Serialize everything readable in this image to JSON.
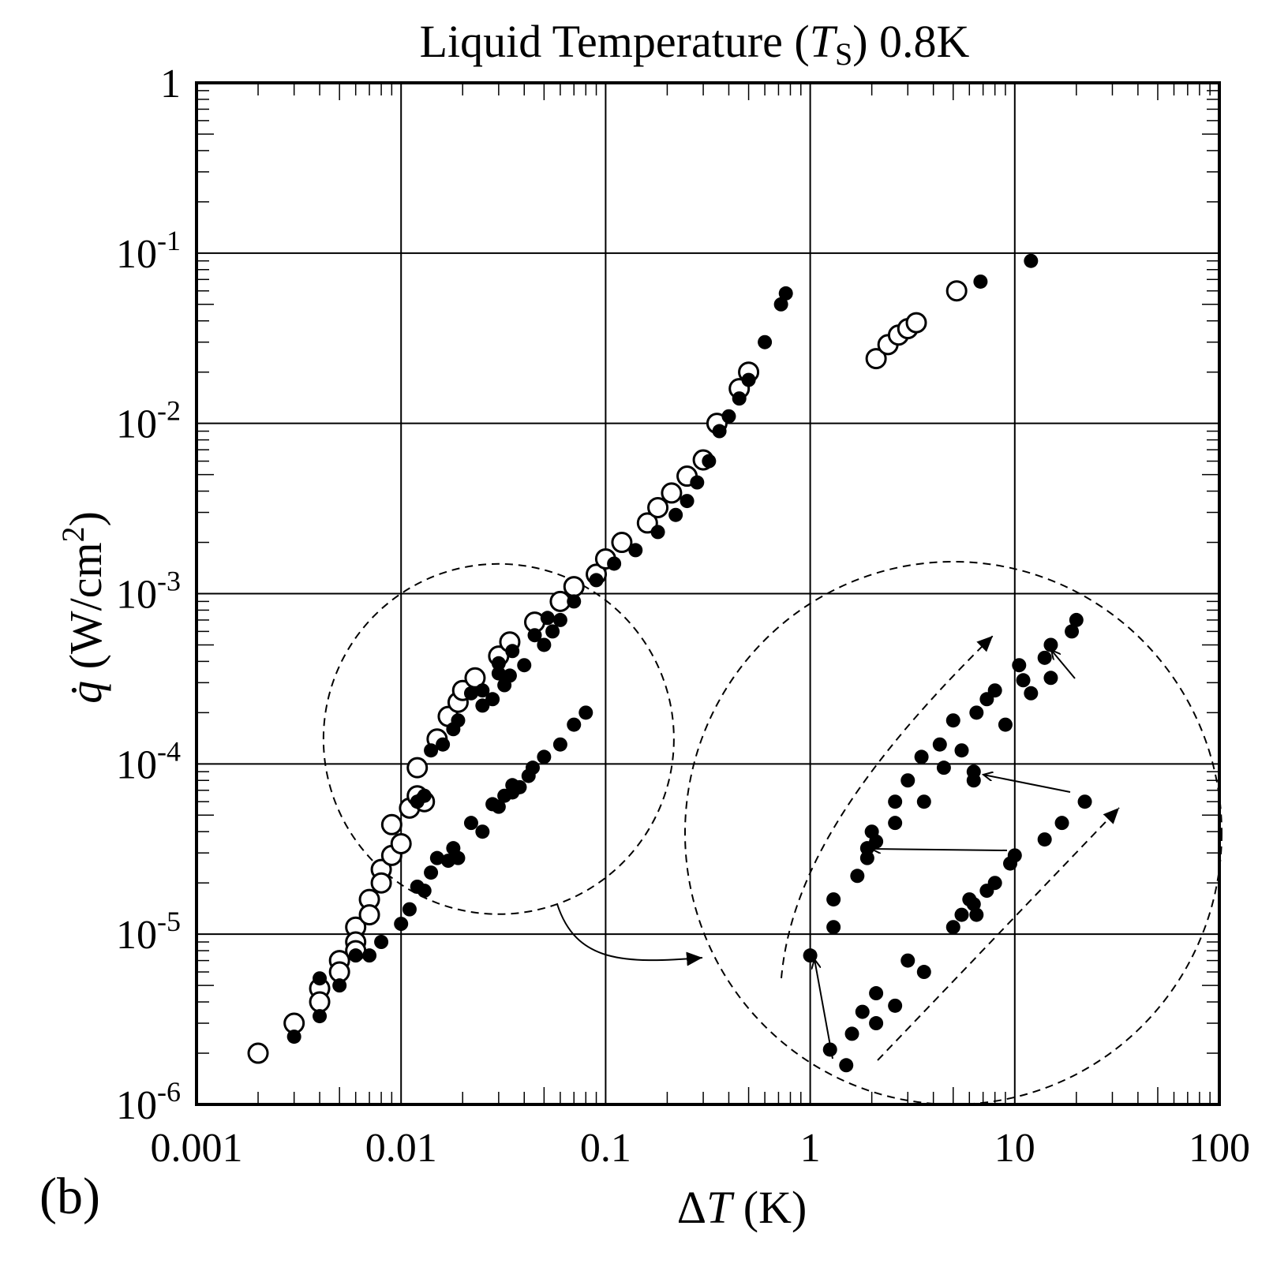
{
  "chart_data": {
    "type": "scatter",
    "title": {
      "prefix": "Liquid Temperature (",
      "symbol": "T",
      "subscript": "S",
      "suffix": ") 0.8K"
    },
    "panel_label": "(b)",
    "x_axis": {
      "scale": "log",
      "range": [
        0.001,
        100
      ],
      "label": {
        "prefix": "Δ",
        "symbol": "T",
        "unit": " (K)"
      },
      "ticks": [
        {
          "value": 0.001,
          "label": "0.001"
        },
        {
          "value": 0.01,
          "label": "0.01"
        },
        {
          "value": 0.1,
          "label": "0.1"
        },
        {
          "value": 1,
          "label": "1"
        },
        {
          "value": 10,
          "label": "10"
        },
        {
          "value": 100,
          "label": "100"
        }
      ]
    },
    "y_axis": {
      "scale": "log",
      "range": [
        1e-06,
        1
      ],
      "label": {
        "symbol": "q̇",
        "unit": " (W/cm",
        "superscript": "2",
        "close": ")"
      },
      "ticks": [
        {
          "value": 1,
          "base": "1",
          "exponent": ""
        },
        {
          "value": 0.1,
          "base": "10",
          "exponent": "-1"
        },
        {
          "value": 0.01,
          "base": "10",
          "exponent": "-2"
        },
        {
          "value": 0.001,
          "base": "10",
          "exponent": "-3"
        },
        {
          "value": 0.0001,
          "base": "10",
          "exponent": "-4"
        },
        {
          "value": 1e-05,
          "base": "10",
          "exponent": "-5"
        },
        {
          "value": 1e-06,
          "base": "10",
          "exponent": "-6"
        }
      ]
    },
    "grid": true,
    "series": [
      {
        "marker": "open-circle",
        "points": [
          [
            0.002,
            2e-06
          ],
          [
            0.003,
            3e-06
          ],
          [
            0.004,
            4.8e-06
          ],
          [
            0.004,
            4e-06
          ],
          [
            0.005,
            7e-06
          ],
          [
            0.005,
            6e-06
          ],
          [
            0.006,
            1.1e-05
          ],
          [
            0.006,
            9e-06
          ],
          [
            0.006,
            8e-06
          ],
          [
            0.007,
            1.6e-05
          ],
          [
            0.007,
            1.3e-05
          ],
          [
            0.008,
            2.4e-05
          ],
          [
            0.008,
            2e-05
          ],
          [
            0.009,
            4.4e-05
          ],
          [
            0.009,
            2.9e-05
          ],
          [
            0.01,
            3.4e-05
          ],
          [
            0.011,
            5.5e-05
          ],
          [
            0.012,
            9.5e-05
          ],
          [
            0.012,
            6.5e-05
          ],
          [
            0.013,
            6e-05
          ],
          [
            0.015,
            0.00014
          ],
          [
            0.017,
            0.00019
          ],
          [
            0.019,
            0.00023
          ],
          [
            0.02,
            0.00027
          ],
          [
            0.023,
            0.00032
          ],
          [
            0.03,
            0.00043
          ],
          [
            0.034,
            0.00052
          ],
          [
            0.045,
            0.00068
          ],
          [
            0.06,
            0.0009
          ],
          [
            0.07,
            0.0011
          ],
          [
            0.09,
            0.0013
          ],
          [
            0.1,
            0.0016
          ],
          [
            0.12,
            0.002
          ],
          [
            0.16,
            0.0026
          ],
          [
            0.18,
            0.0032
          ],
          [
            0.21,
            0.0039
          ],
          [
            0.25,
            0.0049
          ],
          [
            0.3,
            0.0061
          ],
          [
            0.35,
            0.01
          ],
          [
            0.45,
            0.016
          ],
          [
            0.5,
            0.02
          ],
          [
            2.1,
            0.024
          ],
          [
            2.4,
            0.029
          ],
          [
            2.7,
            0.033
          ],
          [
            3.0,
            0.036
          ],
          [
            3.3,
            0.039
          ],
          [
            5.2,
            0.06
          ]
        ]
      },
      {
        "marker": "filled-circle",
        "points": [
          [
            0.003,
            2.5e-06
          ],
          [
            0.004,
            3.3e-06
          ],
          [
            0.004,
            5.5e-06
          ],
          [
            0.005,
            5e-06
          ],
          [
            0.006,
            7.5e-06
          ],
          [
            0.007,
            7.5e-06
          ],
          [
            0.008,
            9e-06
          ],
          [
            0.01,
            1.15e-05
          ],
          [
            0.011,
            1.4e-05
          ],
          [
            0.012,
            1.9e-05
          ],
          [
            0.013,
            1.8e-05
          ],
          [
            0.014,
            2.3e-05
          ],
          [
            0.015,
            2.8e-05
          ],
          [
            0.017,
            2.7e-05
          ],
          [
            0.018,
            3.2e-05
          ],
          [
            0.019,
            2.8e-05
          ],
          [
            0.022,
            4.5e-05
          ],
          [
            0.025,
            4e-05
          ],
          [
            0.028,
            5.8e-05
          ],
          [
            0.03,
            5.6e-05
          ],
          [
            0.032,
            6.5e-05
          ],
          [
            0.035,
            7.5e-05
          ],
          [
            0.035,
            6.8e-05
          ],
          [
            0.038,
            7.3e-05
          ],
          [
            0.042,
            8.5e-05
          ],
          [
            0.044,
            9.5e-05
          ],
          [
            0.05,
            0.00011
          ],
          [
            0.06,
            0.00013
          ],
          [
            0.07,
            0.00017
          ],
          [
            0.08,
            0.0002
          ],
          [
            0.012,
            6e-05
          ],
          [
            0.013,
            6.5e-05
          ],
          [
            0.014,
            0.00012
          ],
          [
            0.016,
            0.00013
          ],
          [
            0.018,
            0.00016
          ],
          [
            0.019,
            0.00018
          ],
          [
            0.022,
            0.00026
          ],
          [
            0.025,
            0.00022
          ],
          [
            0.03,
            0.00034
          ],
          [
            0.034,
            0.00033
          ],
          [
            0.04,
            0.00038
          ],
          [
            0.05,
            0.0005
          ],
          [
            0.06,
            0.0007
          ],
          [
            0.07,
            0.0009
          ],
          [
            0.09,
            0.0012
          ],
          [
            0.11,
            0.0015
          ],
          [
            0.14,
            0.0018
          ],
          [
            0.18,
            0.0023
          ],
          [
            0.22,
            0.0029
          ],
          [
            0.25,
            0.0035
          ],
          [
            0.28,
            0.0045
          ],
          [
            0.32,
            0.006
          ],
          [
            0.36,
            0.009
          ],
          [
            0.4,
            0.011
          ],
          [
            0.45,
            0.014
          ],
          [
            0.5,
            0.018
          ],
          [
            0.6,
            0.03
          ],
          [
            0.72,
            0.05
          ],
          [
            0.76,
            0.058
          ],
          [
            6.8,
            0.068
          ],
          [
            12,
            0.09
          ],
          [
            0.03,
            0.00039
          ],
          [
            0.035,
            0.00046
          ],
          [
            0.025,
            0.00027
          ],
          [
            0.028,
            0.00024
          ],
          [
            0.032,
            0.00029
          ],
          [
            0.045,
            0.00057
          ],
          [
            0.052,
            0.00072
          ],
          [
            0.055,
            0.0006
          ]
        ]
      }
    ],
    "annotations": {
      "zoom_circle_center": [
        0.03,
        0.00014
      ],
      "inset_points": [
        [
          1.0,
          7.5e-06
        ],
        [
          1.25,
          2.1e-06
        ],
        [
          1.5,
          1.7e-06
        ],
        [
          1.3,
          1.1e-05
        ],
        [
          1.3,
          1.6e-05
        ],
        [
          1.6,
          2.6e-06
        ],
        [
          1.8,
          3.5e-06
        ],
        [
          2.1,
          4.5e-06
        ],
        [
          2.1,
          3e-06
        ],
        [
          2.6,
          3.8e-06
        ],
        [
          1.7,
          2.2e-05
        ],
        [
          1.9,
          2.8e-05
        ],
        [
          2.1,
          3.5e-05
        ],
        [
          1.9,
          3.2e-05
        ],
        [
          2.0,
          4e-05
        ],
        [
          2.6,
          4.5e-05
        ],
        [
          2.6,
          6e-05
        ],
        [
          3.0,
          8e-05
        ],
        [
          3.0,
          7e-06
        ],
        [
          3.6,
          6e-06
        ],
        [
          3.6,
          6e-05
        ],
        [
          3.5,
          0.00011
        ],
        [
          4.3,
          0.00013
        ],
        [
          4.5,
          9.5e-05
        ],
        [
          5.0,
          0.00018
        ],
        [
          5.5,
          0.00012
        ],
        [
          6.3,
          9e-05
        ],
        [
          6.3,
          8e-05
        ],
        [
          5.0,
          1.1e-05
        ],
        [
          5.5,
          1.3e-05
        ],
        [
          6.0,
          1.6e-05
        ],
        [
          6.5,
          1.3e-05
        ],
        [
          6.3,
          1.5e-05
        ],
        [
          7.3,
          1.8e-05
        ],
        [
          8.0,
          2e-05
        ],
        [
          9.5,
          2.6e-05
        ],
        [
          10,
          2.9e-05
        ],
        [
          14,
          3.6e-05
        ],
        [
          17,
          4.5e-05
        ],
        [
          22,
          6e-05
        ],
        [
          6.5,
          0.0002
        ],
        [
          7.3,
          0.00024
        ],
        [
          8.0,
          0.00027
        ],
        [
          9.0,
          0.00017
        ],
        [
          10.5,
          0.00038
        ],
        [
          11,
          0.00031
        ],
        [
          12,
          0.00026
        ],
        [
          14,
          0.00042
        ],
        [
          15,
          0.0005
        ],
        [
          15,
          0.00032
        ],
        [
          19,
          0.0006
        ],
        [
          20,
          0.0007
        ]
      ]
    }
  }
}
